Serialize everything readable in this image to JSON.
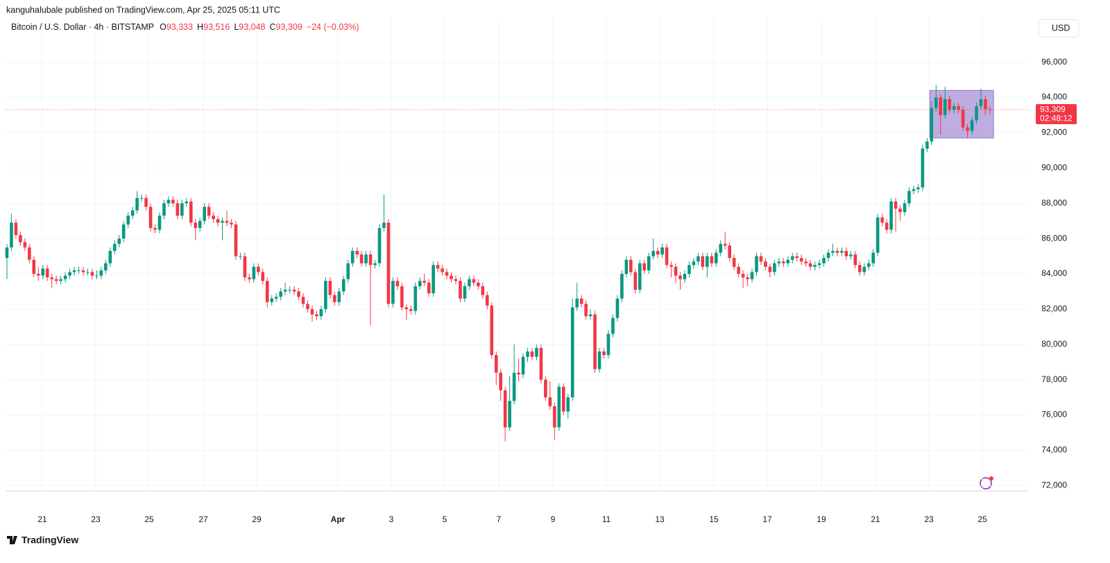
{
  "header": {
    "published": "kanguhalubale published on TradingView.com, Apr 25, 2025 05:11 UTC"
  },
  "footer": {
    "brand": "TradingView"
  },
  "chart_data": {
    "type": "candlestick",
    "title": "Bitcoin / U.S. Dollar · 4h · BITSTAMP",
    "ohlc_legend": [
      {
        "label": "O",
        "value": "93,333"
      },
      {
        "label": "H",
        "value": "93,516"
      },
      {
        "label": "L",
        "value": "93,048"
      },
      {
        "label": "C",
        "value": "93,309"
      }
    ],
    "change": "−24 (−0.03%)",
    "currency": "USD",
    "last_price": {
      "value": 93309,
      "label": "93,309"
    },
    "countdown": "02:48:12",
    "up_color": "#089981",
    "down_color": "#f23645",
    "grid": true,
    "ylim": [
      71700,
      98500
    ],
    "yticks": [
      {
        "value": 72000,
        "label": "72,000"
      },
      {
        "value": 74000,
        "label": "74,000"
      },
      {
        "value": 76000,
        "label": "76,000"
      },
      {
        "value": 78000,
        "label": "78,000"
      },
      {
        "value": 80000,
        "label": "80,000"
      },
      {
        "value": 82000,
        "label": "82,000"
      },
      {
        "value": 84000,
        "label": "84,000"
      },
      {
        "value": 86000,
        "label": "86,000"
      },
      {
        "value": 88000,
        "label": "88,000"
      },
      {
        "value": 90000,
        "label": "90,000"
      },
      {
        "value": 92000,
        "label": "92,000"
      },
      {
        "value": 94000,
        "label": "94,000"
      },
      {
        "value": 96000,
        "label": "96,000"
      }
    ],
    "xlabels": [
      "21",
      "23",
      "25",
      "27",
      "29",
      "Apr",
      "3",
      "5",
      "7",
      "9",
      "11",
      "13",
      "15",
      "17",
      "19",
      "21",
      "23",
      "25"
    ],
    "box": {
      "high": 94400,
      "low": 91700,
      "color": "#9575cd"
    },
    "open": [
      84900,
      85500,
      86900,
      86200,
      85800,
      85500,
      84800,
      84000,
      83900,
      84300,
      83800,
      83700,
      83600,
      83700,
      83900,
      84100,
      84200,
      84200,
      84100,
      84100,
      83900,
      83900,
      84200,
      84600,
      85300,
      85700,
      86000,
      86800,
      87300,
      87600,
      88300,
      88300,
      87800,
      86600,
      86500,
      87300,
      88000,
      88200,
      88000,
      87300,
      88000,
      88100,
      86900,
      86600,
      87000,
      87800,
      87300,
      87100,
      86900,
      87000,
      86900,
      86800,
      85000,
      85000,
      83800,
      83700,
      84400,
      84100,
      83600,
      82400,
      82600,
      82700,
      83000,
      83100,
      83100,
      83000,
      82700,
      82300,
      82000,
      81700,
      81600,
      82000,
      83600,
      82800,
      82400,
      83000,
      83700,
      84600,
      85300,
      85100,
      84600,
      85100,
      84500,
      84600,
      86600,
      86900,
      82300,
      83600,
      83300,
      82100,
      82000,
      81900,
      83300,
      83600,
      83500,
      82900,
      84500,
      84300,
      84100,
      83900,
      83700,
      83600,
      82600,
      83300,
      83700,
      83500,
      83300,
      82800,
      82200,
      79400,
      78400,
      77400,
      75300,
      76800,
      78400,
      78300,
      79300,
      79600,
      79300,
      79800,
      78000,
      77000,
      76500,
      75300,
      77600,
      76200,
      77000,
      82100,
      82600,
      82300,
      81600,
      81700,
      78600,
      79600,
      79400,
      80600,
      81500,
      82600,
      84000,
      84800,
      84100,
      83100,
      84600,
      84200,
      85000,
      85300,
      85100,
      85500,
      84500,
      84400,
      83900,
      83700,
      84000,
      84500,
      84700,
      85000,
      84400,
      85000,
      84600,
      85200,
      85700,
      85600,
      84900,
      84400,
      84000,
      83800,
      83700,
      84100,
      85000,
      84700,
      84400,
      84100,
      84600,
      84700,
      84600,
      84800,
      85000,
      84900,
      84700,
      84600,
      84400,
      84500,
      84600,
      84900,
      85200,
      85300,
      85200,
      85300,
      85000,
      85100,
      84500,
      84100,
      84400,
      84600,
      85200,
      87200,
      86900,
      86500,
      88100,
      87700,
      87500,
      88000,
      88700,
      88800,
      88900,
      91100,
      91500,
      93400,
      94000,
      93000,
      93900,
      93300,
      93500,
      93300,
      92300,
      92100,
      92700,
      93500,
      93900,
      93333
    ],
    "high": [
      85700,
      87400,
      87100,
      86400,
      86000,
      85700,
      85000,
      84400,
      84500,
      84500,
      84000,
      83900,
      83900,
      84100,
      84300,
      84400,
      84400,
      84400,
      84300,
      84300,
      84200,
      84400,
      84800,
      85500,
      85900,
      86200,
      87000,
      87500,
      87800,
      88700,
      88500,
      88500,
      88000,
      86800,
      87500,
      88200,
      88400,
      88400,
      88200,
      88200,
      88300,
      88300,
      87100,
      87200,
      88000,
      88000,
      87500,
      87300,
      87200,
      87600,
      87100,
      87000,
      85200,
      85200,
      84000,
      84600,
      84600,
      84300,
      83800,
      82800,
      82900,
      83200,
      83500,
      83300,
      83300,
      83200,
      82900,
      82500,
      82200,
      81900,
      82200,
      83800,
      83800,
      83000,
      83200,
      83900,
      84800,
      85500,
      85500,
      85300,
      85300,
      85300,
      84800,
      86800,
      88500,
      87100,
      83800,
      83800,
      83500,
      82300,
      82200,
      83500,
      83800,
      84000,
      83700,
      84700,
      84700,
      84500,
      84300,
      84100,
      83900,
      83800,
      83500,
      83900,
      83900,
      83700,
      83500,
      83000,
      82400,
      79600,
      78600,
      77600,
      78200,
      80000,
      79200,
      79500,
      79800,
      79800,
      80000,
      80000,
      78200,
      77900,
      76700,
      77800,
      77800,
      77200,
      82600,
      83500,
      82800,
      82500,
      82000,
      81900,
      79800,
      79800,
      80800,
      81700,
      82800,
      84200,
      85000,
      85000,
      84300,
      84800,
      84800,
      85200,
      86000,
      85500,
      85700,
      85700,
      84700,
      84600,
      84100,
      84200,
      84700,
      84900,
      85200,
      85200,
      85200,
      85200,
      85400,
      85900,
      86400,
      85800,
      85100,
      84600,
      84200,
      84000,
      84300,
      85200,
      85200,
      84900,
      84600,
      84800,
      84900,
      84900,
      85000,
      85200,
      85200,
      85100,
      84900,
      84800,
      84700,
      84800,
      85100,
      85400,
      85700,
      85500,
      85500,
      85500,
      85300,
      85300,
      84700,
      84600,
      84800,
      85400,
      87400,
      87400,
      87100,
      88300,
      88300,
      87900,
      88200,
      88900,
      89000,
      89100,
      91300,
      91700,
      93800,
      94700,
      94200,
      94600,
      94100,
      93700,
      93700,
      93500,
      92500,
      92900,
      93700,
      94500,
      94100,
      93516
    ],
    "low": [
      83700,
      85300,
      86000,
      85600,
      85300,
      84600,
      83800,
      83600,
      83700,
      83600,
      83200,
      83400,
      83400,
      83500,
      83700,
      83900,
      84000,
      83900,
      83900,
      83700,
      83700,
      83700,
      84000,
      84400,
      85100,
      85500,
      85800,
      86600,
      87100,
      87400,
      88100,
      87600,
      86400,
      86300,
      86300,
      87100,
      87800,
      87800,
      87100,
      87100,
      87800,
      86700,
      85900,
      86400,
      86800,
      87100,
      86900,
      86700,
      85900,
      86700,
      86600,
      84800,
      84800,
      83600,
      83500,
      83500,
      83900,
      83400,
      82100,
      82200,
      82400,
      82500,
      82800,
      82900,
      82800,
      82500,
      82100,
      81800,
      81300,
      81400,
      81400,
      81800,
      82600,
      82200,
      82200,
      82800,
      83500,
      84400,
      84900,
      84400,
      84400,
      81100,
      84300,
      84400,
      86400,
      82100,
      82100,
      83100,
      81900,
      81400,
      81700,
      81700,
      83100,
      83300,
      82700,
      82700,
      84100,
      83900,
      83700,
      83500,
      83400,
      82400,
      82400,
      83100,
      83300,
      83100,
      82600,
      82000,
      79200,
      77700,
      76800,
      74500,
      75100,
      76600,
      77900,
      78100,
      79000,
      79100,
      79100,
      77800,
      76800,
      76300,
      74600,
      75100,
      76000,
      75800,
      76800,
      81900,
      82100,
      81400,
      81400,
      78400,
      78400,
      79200,
      79200,
      80400,
      81300,
      82400,
      83800,
      83900,
      82900,
      82900,
      84000,
      84000,
      84800,
      84900,
      84900,
      84300,
      83800,
      83500,
      83100,
      83500,
      83800,
      84300,
      84500,
      84200,
      83800,
      84400,
      84400,
      85000,
      85400,
      84700,
      84200,
      83800,
      83200,
      83300,
      83500,
      83900,
      84500,
      84200,
      83800,
      83900,
      84400,
      84400,
      84400,
      84600,
      84700,
      84500,
      84400,
      84200,
      84200,
      84300,
      84400,
      84700,
      85000,
      85000,
      85000,
      84800,
      84800,
      84300,
      83900,
      83900,
      84200,
      84400,
      85000,
      86700,
      86300,
      86300,
      86400,
      87000,
      87300,
      87800,
      88500,
      88600,
      88700,
      90900,
      91300,
      93200,
      91900,
      92800,
      93100,
      93100,
      93100,
      92100,
      91700,
      91900,
      92500,
      93300,
      93000,
      93048
    ],
    "close": [
      85500,
      86900,
      86200,
      85800,
      85500,
      84800,
      84000,
      83900,
      84300,
      83800,
      83700,
      83600,
      83700,
      83900,
      84100,
      84200,
      84200,
      84100,
      84100,
      83900,
      83900,
      84200,
      84600,
      85300,
      85700,
      86000,
      86800,
      87300,
      87600,
      88300,
      88300,
      87800,
      86600,
      86500,
      87300,
      88000,
      88200,
      88000,
      87300,
      88000,
      88100,
      86900,
      86600,
      87000,
      87800,
      87300,
      87100,
      86900,
      87000,
      86900,
      86800,
      85000,
      85000,
      83800,
      83700,
      84400,
      84100,
      83600,
      82400,
      82600,
      82700,
      83000,
      83100,
      83100,
      83000,
      82700,
      82300,
      82000,
      81700,
      81600,
      82000,
      83600,
      82800,
      82400,
      83000,
      83700,
      84600,
      85300,
      85100,
      84600,
      85100,
      84500,
      84600,
      86600,
      86900,
      82300,
      83600,
      83300,
      82100,
      82000,
      81900,
      83300,
      83600,
      83500,
      82900,
      84500,
      84300,
      84100,
      83900,
      83700,
      83600,
      82600,
      83300,
      83700,
      83500,
      83300,
      82800,
      82200,
      79400,
      78400,
      77400,
      75300,
      76800,
      78400,
      78300,
      79300,
      79600,
      79300,
      79800,
      78000,
      77000,
      76500,
      75300,
      77600,
      76200,
      77000,
      82100,
      82600,
      82300,
      81600,
      81700,
      78600,
      79600,
      79400,
      80600,
      81500,
      82600,
      84000,
      84800,
      84100,
      83100,
      84600,
      84200,
      85000,
      85300,
      85100,
      85500,
      84500,
      84400,
      83900,
      83700,
      84000,
      84500,
      84700,
      85000,
      84400,
      85000,
      84600,
      85200,
      85700,
      85600,
      84900,
      84400,
      84000,
      83800,
      83700,
      84100,
      85000,
      84700,
      84400,
      84100,
      84600,
      84700,
      84600,
      84800,
      85000,
      84900,
      84700,
      84600,
      84400,
      84500,
      84600,
      84900,
      85200,
      85300,
      85200,
      85300,
      85000,
      85100,
      84500,
      84100,
      84400,
      84600,
      85200,
      87200,
      86900,
      86500,
      88100,
      87700,
      87500,
      88000,
      88700,
      88800,
      88900,
      91100,
      91500,
      93400,
      94000,
      93000,
      93900,
      93300,
      93500,
      93300,
      92300,
      92100,
      92700,
      93500,
      93900,
      93333,
      93309
    ]
  }
}
